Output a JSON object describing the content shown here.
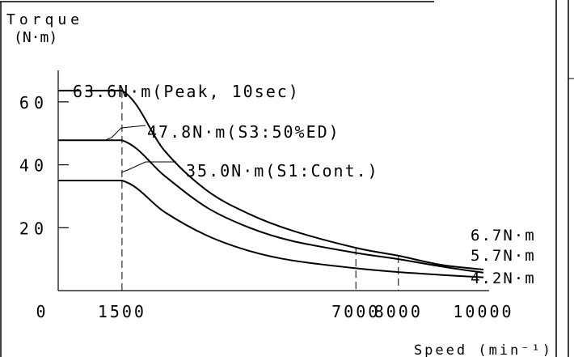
{
  "chart_data": {
    "type": "line",
    "title": "",
    "ylabel_line1": "Torque",
    "ylabel_line2": "(N·m)",
    "xlabel": "Speed (min⁻¹)",
    "xlim": [
      0,
      10000
    ],
    "ylim": [
      0,
      70
    ],
    "x_ticks": [
      {
        "value": 0,
        "label": "0"
      },
      {
        "value": 1500,
        "label": "1500"
      },
      {
        "value": 7000,
        "label": "7000"
      },
      {
        "value": 8000,
        "label": "8000"
      },
      {
        "value": 10000,
        "label": "10000"
      }
    ],
    "y_ticks": [
      {
        "value": 20,
        "label": "20"
      },
      {
        "value": 40,
        "label": "40"
      },
      {
        "value": 60,
        "label": "60"
      }
    ],
    "series": [
      {
        "name": "63.6N·m(Peak, 10sec)",
        "end_label": "6.7N·m",
        "x": [
          0,
          1500,
          2500,
          3500,
          4500,
          5500,
          7000,
          8000,
          9000,
          10000
        ],
        "y": [
          63.6,
          63.6,
          44.5,
          31.8,
          24.3,
          19.1,
          13.6,
          11.1,
          8.2,
          6.7
        ]
      },
      {
        "name": "47.8N·m(S3:50%ED)",
        "end_label": "5.7N·m",
        "x": [
          0,
          1500,
          2500,
          3500,
          4500,
          5500,
          7000,
          8000,
          9000,
          10000
        ],
        "y": [
          47.8,
          47.8,
          36.5,
          26.4,
          20.0,
          15.8,
          12.0,
          10.0,
          7.7,
          5.7
        ]
      },
      {
        "name": "35.0N·m(S1:Cont.)",
        "end_label": "4.2N·m",
        "x": [
          0,
          1500,
          2500,
          3500,
          4500,
          5500,
          7000,
          8000,
          9000,
          10000
        ],
        "y": [
          35.0,
          35.0,
          25.0,
          17.5,
          12.6,
          9.6,
          7.1,
          5.9,
          5.0,
          4.2
        ]
      }
    ],
    "grid": false,
    "legend": "labels on curves"
  }
}
